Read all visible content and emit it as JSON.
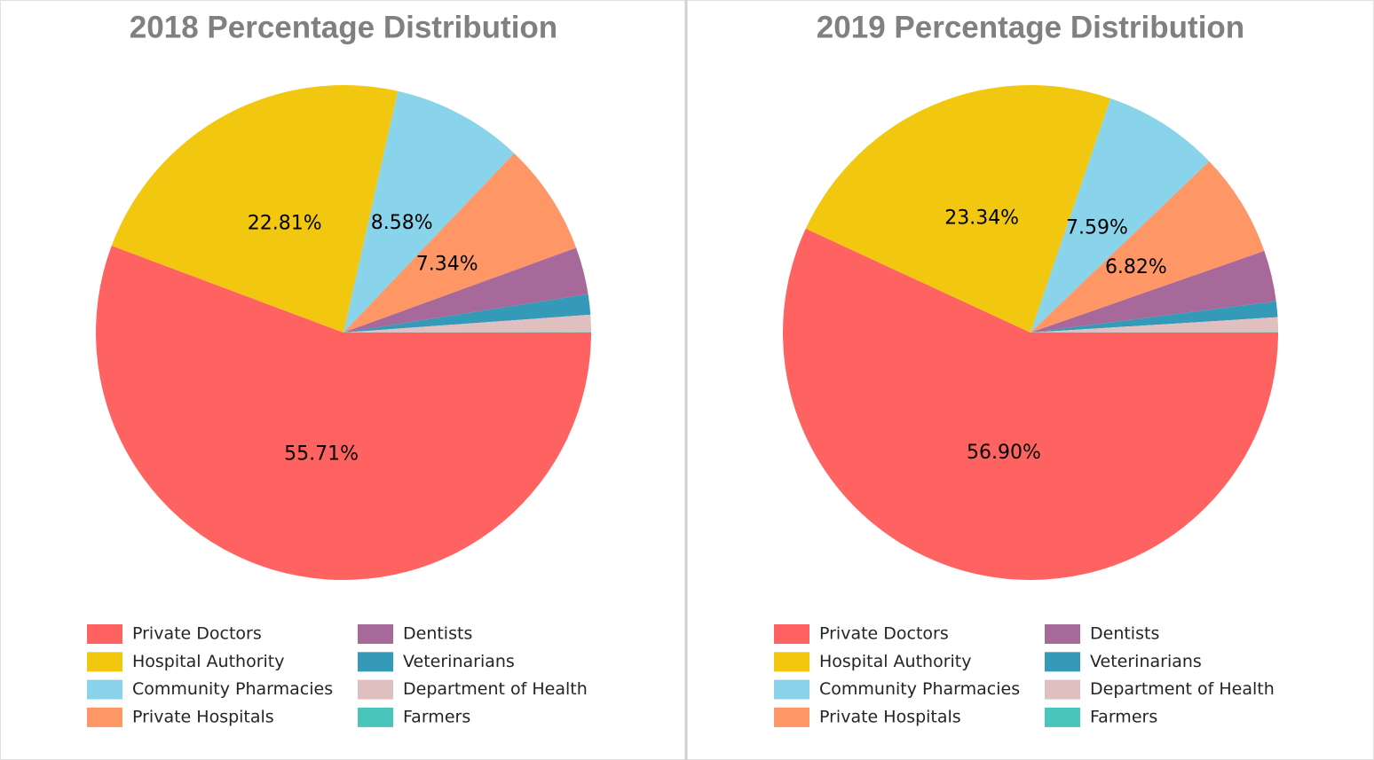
{
  "chart_data": [
    {
      "type": "pie",
      "title": "2018 Percentage Distribution",
      "categories": [
        "Private Doctors",
        "Hospital Authority",
        "Community Pharmacies",
        "Private Hospitals",
        "Dentists",
        "Veterinarians",
        "Department of Health",
        "Farmers"
      ],
      "values": [
        55.71,
        22.81,
        8.58,
        7.34,
        3.08,
        1.33,
        1.13,
        0.02
      ],
      "value_labels": [
        "55.71%",
        "22.81%",
        "8.58%",
        "7.34%",
        null,
        null,
        null,
        null
      ],
      "colors": [
        "#ff6361",
        "#f1c80f",
        "#8ad4eb",
        "#fe9666",
        "#a66999",
        "#3599b8",
        "#dfbfbf",
        "#4ac5bb"
      ]
    },
    {
      "type": "pie",
      "title": "2019 Percentage Distribution",
      "categories": [
        "Private Doctors",
        "Hospital Authority",
        "Community Pharmacies",
        "Private Hospitals",
        "Dentists",
        "Veterinarians",
        "Department of Health",
        "Farmers"
      ],
      "values": [
        56.9,
        23.34,
        7.59,
        6.82,
        3.33,
        1.03,
        0.97,
        0.02
      ],
      "value_labels": [
        "56.90%",
        "23.34%",
        "7.59%",
        "6.82%",
        null,
        null,
        null,
        null
      ],
      "colors": [
        "#ff6361",
        "#f1c80f",
        "#8ad4eb",
        "#fe9666",
        "#a66999",
        "#3599b8",
        "#dfbfbf",
        "#4ac5bb"
      ]
    }
  ]
}
